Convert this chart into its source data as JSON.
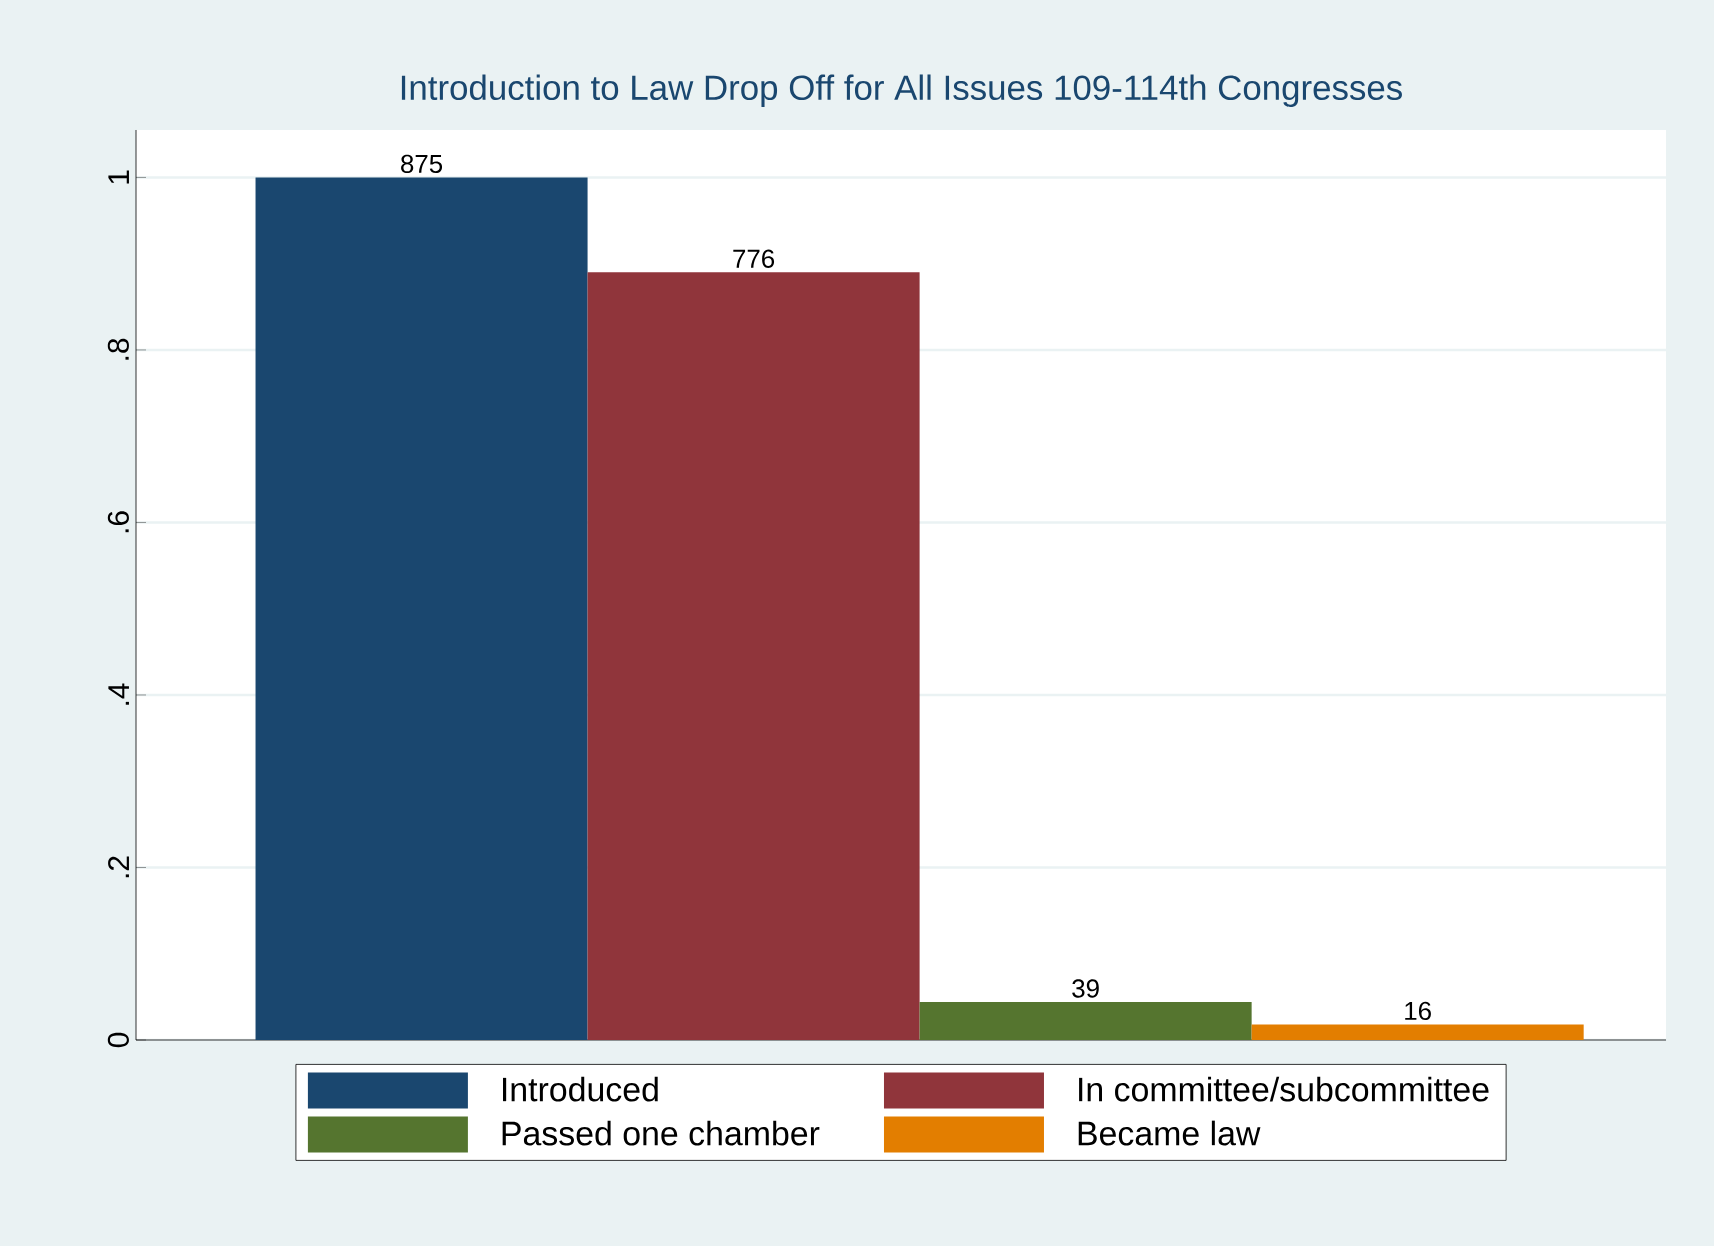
{
  "chart_data": {
    "type": "bar",
    "title": "Introduction to Law Drop Off for All Issues 109-114th Congresses",
    "categories": [
      null
    ],
    "series": [
      {
        "name": "Introduced",
        "color": "#1a476f",
        "values": [
          1
        ]
      },
      {
        "name": "In committee/subcommittee",
        "color": "#90353b",
        "values": [
          0.89
        ]
      },
      {
        "name": "Passed one chamber",
        "color": "#55752f",
        "values": [
          0.044
        ]
      },
      {
        "name": "Became law",
        "color": "#e37e00",
        "values": [
          0.018
        ]
      }
    ],
    "annotations": [
      {
        "text": "875",
        "y": 1
      },
      {
        "text": "776",
        "y": 0.89
      },
      {
        "text": "39",
        "y": 0.044
      },
      {
        "text": "16",
        "y": 0.018
      }
    ],
    "ylim": [
      0,
      1.055
    ],
    "yticks": [
      0,
      {
        "value": 0.2,
        "label": ".2"
      },
      {
        "value": 0.4,
        "label": ".4"
      },
      {
        "value": 0.6,
        "label": ".6"
      },
      {
        "value": 0.8,
        "label": ".8"
      },
      1
    ],
    "grid": "y",
    "legend": "bottom",
    "tick_labels": "y"
  }
}
